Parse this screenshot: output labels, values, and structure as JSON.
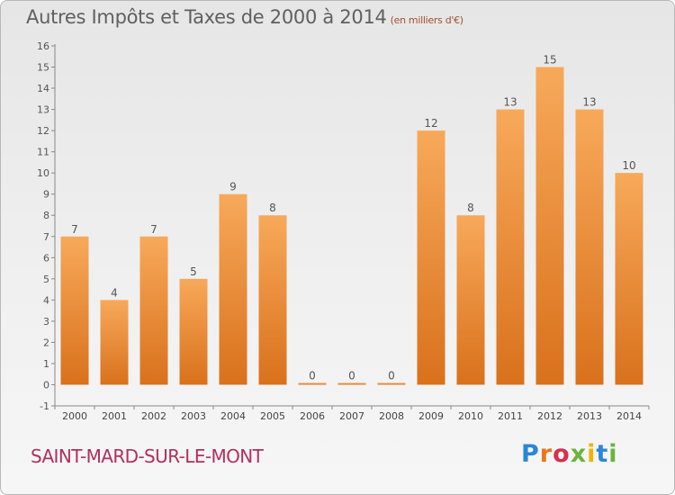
{
  "page": {
    "title": "Autres Impôts et Taxes de 2000 à 2014",
    "unit": "(en milliers d'€)",
    "commune": "SAINT-MARD-SUR-LE-MONT",
    "logo": [
      "P",
      "r",
      "o",
      "x",
      "i",
      "t",
      "i"
    ]
  },
  "chart_data": {
    "type": "bar",
    "title": "Autres Impôts et Taxes de 2000 à 2014",
    "subtitle": "(en milliers d'€)",
    "categories": [
      "2000",
      "2001",
      "2002",
      "2003",
      "2004",
      "2005",
      "2006",
      "2007",
      "2008",
      "2009",
      "2010",
      "2011",
      "2012",
      "2013",
      "2014"
    ],
    "values": [
      7,
      4,
      7,
      5,
      9,
      8,
      0,
      0,
      0,
      12,
      8,
      13,
      15,
      13,
      10
    ],
    "ylim": [
      -1,
      16
    ],
    "yticks": [
      -1,
      0,
      1,
      2,
      3,
      4,
      5,
      6,
      7,
      8,
      9,
      10,
      11,
      12,
      13,
      14,
      15,
      16
    ],
    "grid": false,
    "colors": {
      "bar_top": "#f7a95a",
      "bar_bottom": "#d9711c",
      "axis": "#888888",
      "label": "#555555"
    }
  }
}
